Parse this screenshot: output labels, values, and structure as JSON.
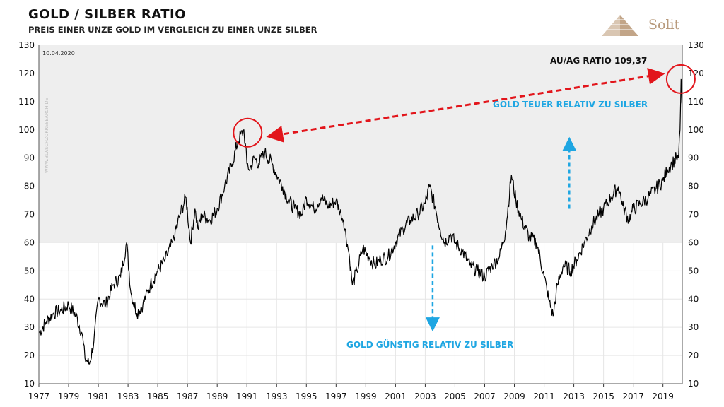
{
  "header": {
    "title": "GOLD / SILBER RATIO",
    "subtitle": "PREIS EINER UNZE GOLD IM VERGLEICH ZU EINER UNZE SILBER"
  },
  "logo": {
    "text": "Solit",
    "icon": "pyramid-icon",
    "color": "#b89a7c"
  },
  "chart_data": {
    "type": "line",
    "date_label": "10.04.2020",
    "watermark": "WWW.BLASCHZOKRESEARCH.DE",
    "xlim": [
      1977,
      2020.3
    ],
    "ylim": [
      10,
      130
    ],
    "y_ticks": [
      "10",
      "20",
      "30",
      "40",
      "50",
      "60",
      "70",
      "80",
      "90",
      "100",
      "110",
      "120",
      "130"
    ],
    "x_ticks": [
      "1977",
      "1979",
      "1981",
      "1983",
      "1985",
      "1987",
      "1989",
      "1991",
      "1993",
      "1995",
      "1997",
      "1999",
      "2001",
      "2003",
      "2005",
      "2007",
      "2009",
      "2011",
      "2013",
      "2015",
      "2017",
      "2019"
    ],
    "threshold": 60,
    "grid": true,
    "series": [
      {
        "color": "#000000",
        "x": [
          1977.0,
          1977.5,
          1978.0,
          1978.5,
          1979.0,
          1979.5,
          1979.9,
          1980.1,
          1980.4,
          1980.7,
          1981.0,
          1981.5,
          1982.0,
          1982.5,
          1982.9,
          1983.2,
          1983.6,
          1984.0,
          1984.5,
          1985.0,
          1985.5,
          1986.0,
          1986.5,
          1986.9,
          1987.2,
          1987.5,
          1987.7,
          1988.0,
          1988.5,
          1989.0,
          1989.5,
          1990.0,
          1990.4,
          1990.8,
          1991.0,
          1991.2,
          1991.5,
          1991.8,
          1992.2,
          1992.7,
          1993.0,
          1993.4,
          1993.8,
          1994.2,
          1994.7,
          1995.0,
          1995.5,
          1996.0,
          1996.5,
          1997.0,
          1997.5,
          1997.9,
          1998.1,
          1998.4,
          1998.8,
          1999.2,
          1999.6,
          2000.0,
          2000.5,
          2001.0,
          2001.5,
          2002.0,
          2002.5,
          2003.0,
          2003.3,
          2003.7,
          2004.0,
          2004.3,
          2004.7,
          2005.0,
          2005.5,
          2006.0,
          2006.5,
          2007.0,
          2007.5,
          2008.0,
          2008.4,
          2008.8,
          2009.1,
          2009.5,
          2010.0,
          2010.5,
          2011.0,
          2011.3,
          2011.6,
          2011.9,
          2012.3,
          2012.8,
          2013.2,
          2013.7,
          2014.2,
          2014.7,
          2015.0,
          2015.5,
          2016.0,
          2016.3,
          2016.7,
          2017.0,
          2017.5,
          2018.0,
          2018.5,
          2019.0,
          2019.3,
          2019.6,
          2019.9,
          2020.05,
          2020.15,
          2020.22,
          2020.27
        ],
        "y": [
          28,
          32,
          35,
          36,
          38,
          34,
          28,
          19,
          17,
          25,
          40,
          38,
          45,
          48,
          60,
          42,
          35,
          38,
          45,
          50,
          54,
          60,
          70,
          76,
          60,
          72,
          65,
          70,
          68,
          72,
          80,
          88,
          96,
          100,
          88,
          86,
          90,
          88,
          92,
          88,
          84,
          80,
          75,
          72,
          70,
          76,
          72,
          76,
          73,
          75,
          68,
          55,
          45,
          50,
          58,
          55,
          52,
          54,
          55,
          60,
          65,
          68,
          70,
          74,
          80,
          72,
          65,
          60,
          63,
          60,
          57,
          52,
          50,
          48,
          52,
          55,
          64,
          84,
          75,
          68,
          62,
          60,
          48,
          40,
          34,
          45,
          52,
          50,
          54,
          60,
          66,
          70,
          72,
          76,
          80,
          73,
          68,
          72,
          74,
          76,
          79,
          82,
          86,
          88,
          90,
          90,
          100,
          118,
          109.37
        ]
      }
    ],
    "annotations": {
      "ratio_label": "AU/AG RATIO 109,37",
      "expensive_label": "GOLD  TEUER  RELATIV  ZU  SILBER",
      "cheap_label": "GOLD  GÜNSTIG  RELATIV  ZU  SILBER"
    },
    "colors": {
      "line": "#000000",
      "fill": "#eeeeee",
      "red": "#e2151b",
      "blue": "#1ea6e2",
      "grid": "#e6e6e6"
    }
  }
}
